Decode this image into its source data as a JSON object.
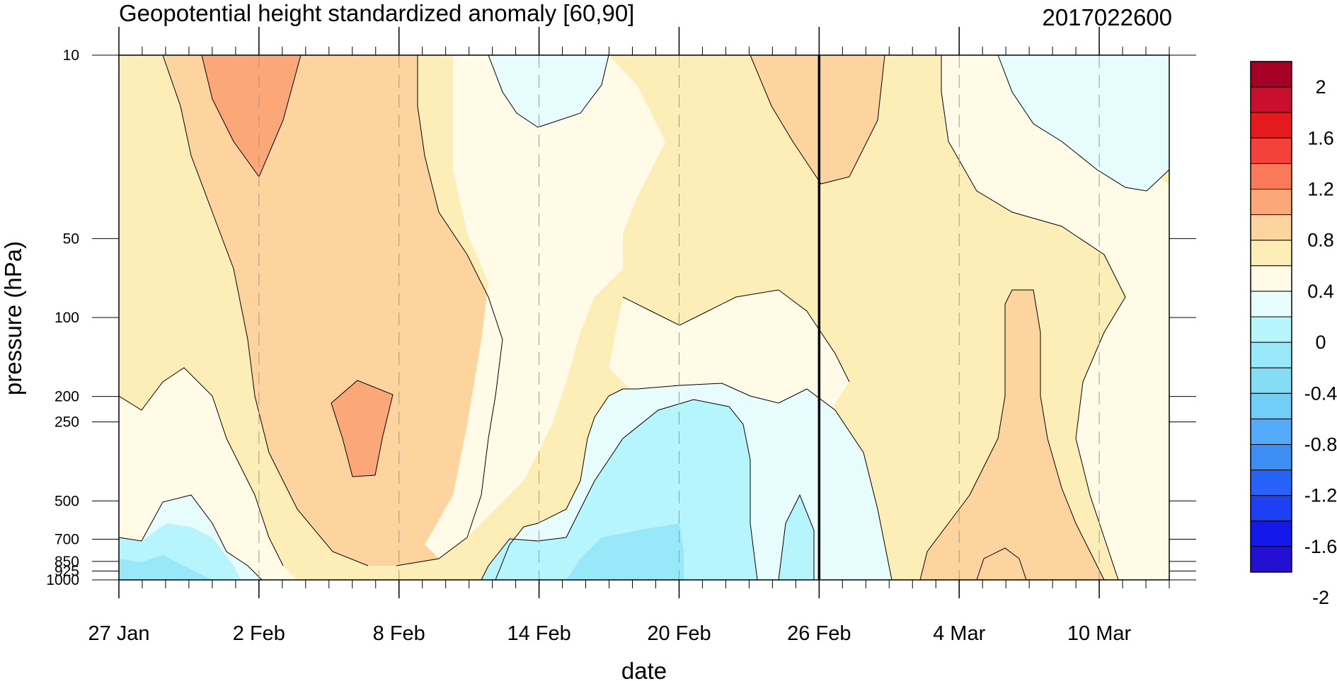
{
  "chart_data": {
    "type": "heatmap",
    "title": "Geopotential height standardized anomaly [60,90]",
    "date_label": "2017022600",
    "xlabel": "date",
    "ylabel": "pressure (hPa)",
    "x_ticks": [
      {
        "label": "27 Jan",
        "day": 0
      },
      {
        "label": "2 Feb",
        "day": 6
      },
      {
        "label": "8 Feb",
        "day": 12
      },
      {
        "label": "14 Feb",
        "day": 18
      },
      {
        "label": "20 Feb",
        "day": 24
      },
      {
        "label": "26 Feb",
        "day": 30
      },
      {
        "label": "4 Mar",
        "day": 36
      },
      {
        "label": "10 Mar",
        "day": 42
      }
    ],
    "y_ticks": [
      "10",
      "50",
      "100",
      "200",
      "250",
      "500",
      "700",
      "850",
      "925",
      "1000"
    ],
    "y_levels": [
      10,
      50,
      100,
      200,
      250,
      500,
      700,
      850,
      925,
      1000
    ],
    "current_date_marker": "26 Feb",
    "colorbar": {
      "labels": [
        "2",
        "1.6",
        "1.2",
        "0.8",
        "0.4",
        "0",
        "-0.4",
        "-0.8",
        "-1.2",
        "-1.6",
        "-2"
      ],
      "colors": [
        "#a50026",
        "#c8102e",
        "#e41a1c",
        "#f4413a",
        "#fb7858",
        "#fca778",
        "#fdd49e",
        "#fdeeb8",
        "#fffbe6",
        "#e6fcfd",
        "#b6f5fc",
        "#99e8fa",
        "#84dcf5",
        "#70cef8",
        "#53a9fa",
        "#3c8ef5",
        "#2662f7",
        "#1d40f5",
        "#1418e8",
        "#2410d2"
      ]
    },
    "fill_colors": {
      "c_pos08": "#fca778",
      "c_pos06": "#fdd49e",
      "c_pos04": "#fdeeb8",
      "c_pos00": "#fffbe6",
      "c_neg00": "#e6fcfd",
      "c_neg04": "#b6f5fc",
      "c_neg06": "#99e8fa",
      "c_neg08": "#84dcf5"
    }
  }
}
